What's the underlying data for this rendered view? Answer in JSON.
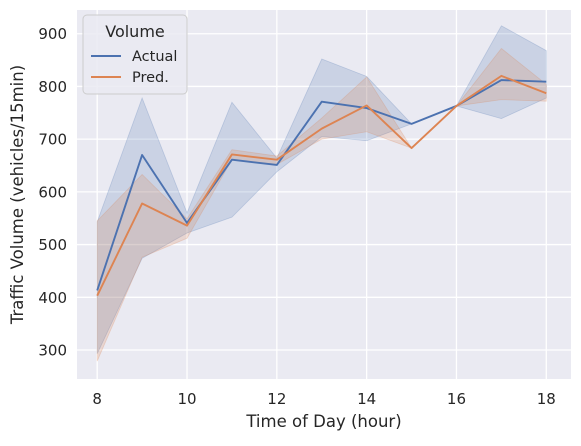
{
  "chart_data": {
    "type": "line",
    "xlabel": "Time of Day (hour)",
    "ylabel": "Traffic Volume (vehicles/15min)",
    "xlim": [
      7.55,
      18.55
    ],
    "ylim": [
      245,
      945
    ],
    "xticks": [
      8,
      10,
      12,
      14,
      16,
      18
    ],
    "yticks": [
      300,
      400,
      500,
      600,
      700,
      800,
      900
    ],
    "grid": true,
    "background": "#eaeaf2",
    "legend": {
      "title": "Volume",
      "placement": "top-left"
    },
    "series": [
      {
        "name": "Actual",
        "color": "#4c72b0",
        "x": [
          8,
          9,
          10,
          11,
          12,
          13,
          14,
          15,
          16,
          17,
          18
        ],
        "y": [
          413,
          670,
          541,
          661,
          651,
          771,
          759,
          729,
          763,
          812,
          809
        ],
        "band_upper": [
          543,
          778,
          560,
          770,
          664,
          852,
          819,
          729,
          763,
          915,
          868
        ],
        "band_lower": [
          293,
          474,
          522,
          552,
          638,
          705,
          697,
          729,
          763,
          739,
          778
        ]
      },
      {
        "name": "Pred.",
        "color": "#dd8452",
        "x": [
          8,
          9,
          10,
          11,
          12,
          13,
          14,
          15,
          16,
          17,
          18
        ],
        "y": [
          403,
          578,
          536,
          671,
          661,
          720,
          764,
          683,
          763,
          820,
          787
        ],
        "band_upper": [
          545,
          633,
          549,
          680,
          668,
          740,
          818,
          683,
          763,
          872,
          804
        ],
        "band_lower": [
          279,
          476,
          512,
          661,
          652,
          700,
          714,
          683,
          763,
          775,
          772
        ]
      }
    ]
  }
}
